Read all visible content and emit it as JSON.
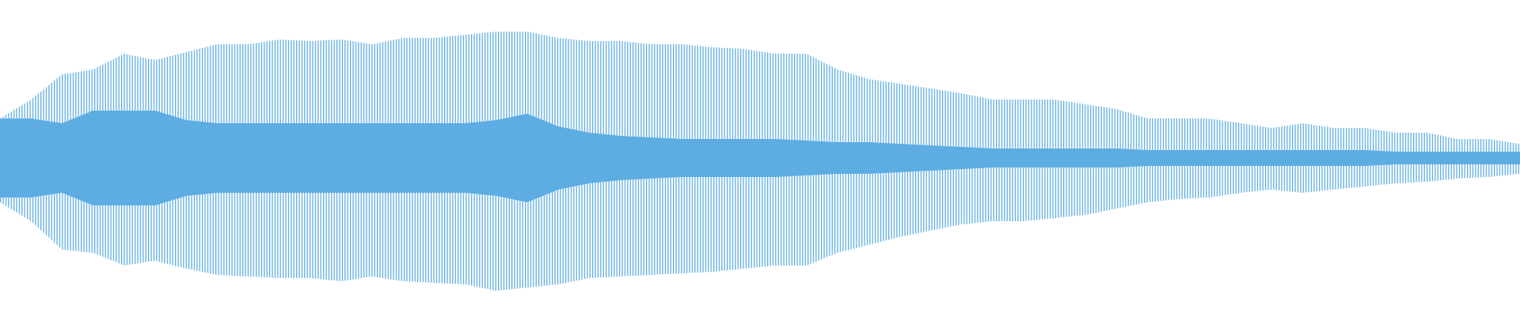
{
  "chart_data": {
    "type": "waveform",
    "color": "#5dade2",
    "ylim": [
      -1,
      1
    ],
    "peak_max": [
      0.25,
      0.37,
      0.53,
      0.56,
      0.66,
      0.62,
      0.67,
      0.72,
      0.72,
      0.75,
      0.74,
      0.75,
      0.72,
      0.76,
      0.76,
      0.78,
      0.8,
      0.8,
      0.76,
      0.74,
      0.74,
      0.72,
      0.72,
      0.7,
      0.69,
      0.66,
      0.66,
      0.56,
      0.5,
      0.47,
      0.44,
      0.41,
      0.37,
      0.37,
      0.37,
      0.34,
      0.31,
      0.25,
      0.25,
      0.25,
      0.22,
      0.19,
      0.22,
      0.19,
      0.19,
      0.16,
      0.16,
      0.12,
      0.12,
      0.09
    ],
    "peak_min": [
      -0.28,
      -0.4,
      -0.58,
      -0.6,
      -0.68,
      -0.65,
      -0.7,
      -0.74,
      -0.75,
      -0.76,
      -0.76,
      -0.78,
      -0.75,
      -0.78,
      -0.79,
      -0.8,
      -0.84,
      -0.82,
      -0.8,
      -0.76,
      -0.75,
      -0.74,
      -0.73,
      -0.72,
      -0.7,
      -0.68,
      -0.68,
      -0.6,
      -0.55,
      -0.5,
      -0.46,
      -0.42,
      -0.4,
      -0.4,
      -0.38,
      -0.36,
      -0.32,
      -0.28,
      -0.26,
      -0.25,
      -0.22,
      -0.2,
      -0.22,
      -0.2,
      -0.18,
      -0.16,
      -0.15,
      -0.13,
      -0.12,
      -0.1
    ],
    "core": [
      0.25,
      0.25,
      0.22,
      0.3,
      0.3,
      0.3,
      0.24,
      0.22,
      0.22,
      0.22,
      0.22,
      0.22,
      0.22,
      0.22,
      0.22,
      0.22,
      0.24,
      0.28,
      0.2,
      0.16,
      0.14,
      0.13,
      0.12,
      0.12,
      0.12,
      0.12,
      0.11,
      0.1,
      0.1,
      0.09,
      0.08,
      0.07,
      0.06,
      0.06,
      0.06,
      0.06,
      0.06,
      0.05,
      0.05,
      0.05,
      0.05,
      0.05,
      0.05,
      0.05,
      0.05,
      0.04,
      0.04,
      0.04,
      0.04,
      0.04
    ]
  }
}
